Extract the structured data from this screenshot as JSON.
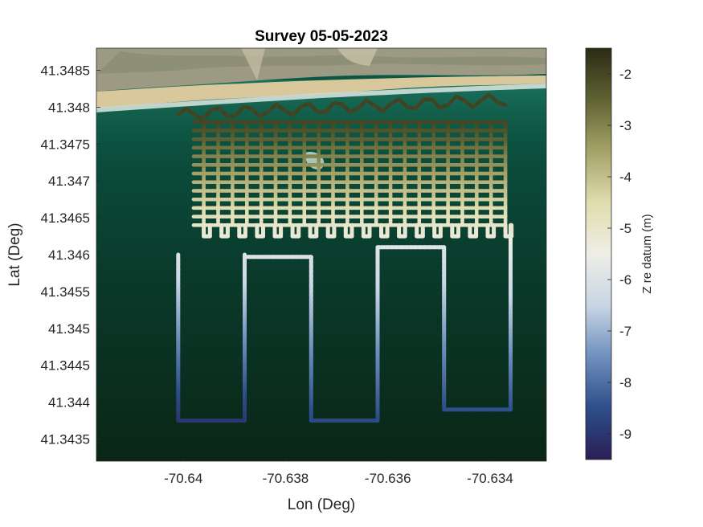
{
  "chart_data": {
    "type": "scatter",
    "title": "Survey 05-05-2023",
    "xlabel": "Lon (Deg)",
    "ylabel": "Lat (Deg)",
    "xlim": [
      -70.6417,
      -70.6329
    ],
    "ylim": [
      41.3432,
      41.3488
    ],
    "xticks": [
      -70.64,
      -70.638,
      -70.636,
      -70.634
    ],
    "xtick_labels": [
      "-70.64",
      "-70.638",
      "-70.636",
      "-70.634"
    ],
    "yticks": [
      41.3435,
      41.344,
      41.3445,
      41.345,
      41.3455,
      41.346,
      41.3465,
      41.347,
      41.3475,
      41.348,
      41.3485
    ],
    "ytick_labels": [
      "41.3435",
      "41.344",
      "41.3445",
      "41.345",
      "41.3455",
      "41.346",
      "41.3465",
      "41.347",
      "41.3475",
      "41.348",
      "41.3485"
    ],
    "colorbar": {
      "label": "Z re datum (m)",
      "range": [
        -9.5,
        -1.5
      ],
      "ticks": [
        -2,
        -3,
        -4,
        -5,
        -6,
        -7,
        -8,
        -9
      ],
      "tick_labels": [
        "-2",
        "-3",
        "-4",
        "-5",
        "-6",
        "-7",
        "-8",
        "-9"
      ],
      "colors": [
        "#2a1f55",
        "#2d4e8a",
        "#6f8fbd",
        "#c9d6e6",
        "#eeeee6",
        "#e0dcae",
        "#a5a268",
        "#5f6333",
        "#2b2a14"
      ]
    },
    "background": "satellite imagery: beach and dunes along the top, dark green water below",
    "tracks": {
      "deep_legs": [
        {
          "lon": [
            -70.6401,
            -70.6401,
            -70.6388,
            -70.6388
          ],
          "lat": [
            41.346,
            41.34375,
            41.34375,
            41.346
          ],
          "z": [
            -6.0,
            -9.0,
            -9.0,
            -6.0
          ]
        },
        {
          "lon": [
            -70.6388,
            -70.6388,
            -70.6375,
            -70.6375
          ],
          "lat": [
            41.34597,
            41.34597,
            41.34597,
            41.34375
          ],
          "z": [
            -6.0,
            -6.0,
            -6.0,
            -8.6
          ]
        },
        {
          "lon": [
            -70.6375,
            -70.6362,
            -70.6362
          ],
          "lat": [
            41.34375,
            41.34375,
            41.3461
          ],
          "z": [
            -8.6,
            -8.6,
            -5.9
          ]
        },
        {
          "lon": [
            -70.6362,
            -70.6349,
            -70.6349,
            -70.6336,
            -70.6336
          ],
          "lat": [
            41.3461,
            41.3461,
            41.3439,
            41.3439,
            41.3464
          ],
          "z": [
            -5.9,
            -5.9,
            -8.5,
            -8.5,
            -5.3
          ]
        }
      ],
      "grid_lon_range": [
        -70.6396,
        -70.6337
      ],
      "grid_lat_range": [
        41.3464,
        41.3478
      ],
      "grid_z_range": [
        -5.0,
        -2.0
      ],
      "turn_loops_lat": 41.34625,
      "nearshore_lat": 41.3479
    }
  }
}
